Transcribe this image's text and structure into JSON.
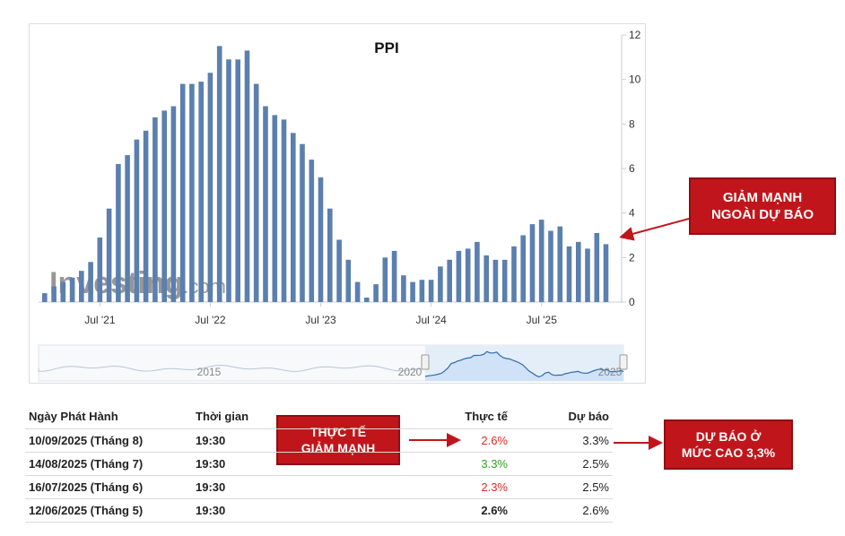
{
  "chart_data": {
    "type": "bar",
    "title": "PPI",
    "yaxis_ticks": [
      "0",
      "2",
      "4",
      "6",
      "8",
      "10",
      "12"
    ],
    "ylim": [
      0,
      12
    ],
    "yaxis_side": "right",
    "xaxis_ticks": [
      "Jul '21",
      "Jul '22",
      "Jul '23",
      "Jul '24",
      "Jul '25"
    ],
    "bar_color": "#5b7fae",
    "grid": false,
    "watermark": "Investing.com",
    "series": [
      {
        "values": [
          0.4,
          0.7,
          0.9,
          1.1,
          1.4,
          1.8,
          2.9,
          4.2,
          6.2,
          6.6,
          7.3,
          7.7,
          8.3,
          8.6,
          8.8,
          9.8,
          9.8,
          9.9,
          10.3,
          11.5,
          10.9,
          10.9,
          11.3,
          9.8,
          8.8,
          8.4,
          8.2,
          7.6,
          7.1,
          6.4,
          5.6,
          4.2,
          2.8,
          1.9,
          0.9,
          0.2,
          0.8,
          2.0,
          2.3,
          1.2,
          0.9,
          1.0,
          1.0,
          1.6,
          1.9,
          2.3,
          2.4,
          2.7,
          2.1,
          1.9,
          1.9,
          2.5,
          3.0,
          3.5,
          3.7,
          3.2,
          3.4,
          2.5,
          2.7,
          2.4,
          3.1,
          2.6
        ]
      }
    ],
    "navigator": {
      "labels": [
        "2015",
        "2020",
        "2025"
      ]
    }
  },
  "table": {
    "headers": {
      "date": "Ngày Phát Hành",
      "time": "Thời gian",
      "actual": "Thực tế",
      "forecast": "Dự báo"
    },
    "rows": [
      {
        "date": "10/09/2025 (Tháng 8)",
        "time": "19:30",
        "actual": "2.6%",
        "actual_color": "#e32828",
        "forecast": "3.3%"
      },
      {
        "date": "14/08/2025 (Tháng 7)",
        "time": "19:30",
        "actual": "3.3%",
        "actual_color": "#2ea023",
        "forecast": "2.5%"
      },
      {
        "date": "16/07/2025 (Tháng 6)",
        "time": "19:30",
        "actual": "2.3%",
        "actual_color": "#e32828",
        "forecast": "2.5%"
      },
      {
        "date": "12/06/2025 (Tháng 5)",
        "time": "19:30",
        "actual": "2.6%",
        "actual_color": "#222222",
        "forecast": "2.6%"
      }
    ]
  },
  "callouts": {
    "sharp_drop": [
      "GIẢM MẠNH",
      "NGOÀI DỰ BÁO"
    ],
    "actual_drop": [
      "THỰC TẾ",
      "GIẢM MẠNH"
    ],
    "forecast_high": [
      "DỰ BÁO Ở",
      "MỨC CAO 3,3%"
    ]
  },
  "colors": {
    "callout_bg": "#c0161b",
    "arrow": "#c0161b",
    "navigator_fill": "#cfe2f7",
    "navigator_line": "#2f6aa8"
  }
}
